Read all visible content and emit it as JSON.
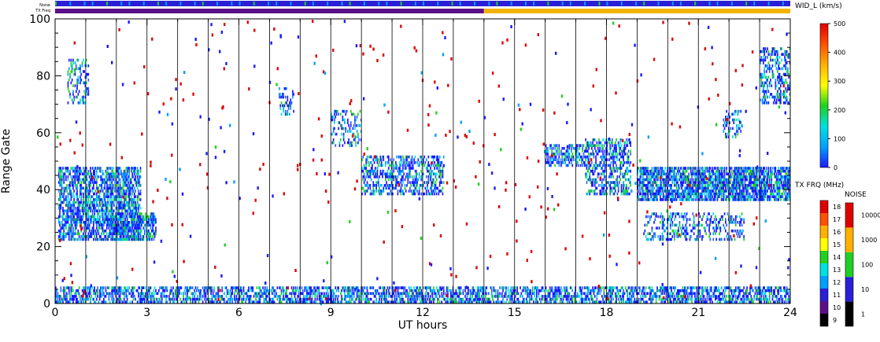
{
  "chart_data": {
    "type": "heatmap",
    "title": "",
    "xlabel": "UT hours",
    "ylabel": "Range Gate",
    "xlim": [
      0,
      24
    ],
    "ylim": [
      0,
      100
    ],
    "x_ticks": [
      "0",
      "3",
      "6",
      "9",
      "12",
      "15",
      "18",
      "21",
      "24"
    ],
    "y_ticks": [
      "0",
      "20",
      "40",
      "60",
      "80",
      "100"
    ],
    "top_strips": {
      "noise_label": "Noise",
      "freq_label": "TX Freq",
      "noise_color": "#2a1fd6",
      "freq_segments": [
        {
          "from": 0,
          "to": 14,
          "color": "#5a0f8a"
        },
        {
          "from": 14,
          "to": 24,
          "color": "#f2b400"
        }
      ]
    },
    "colorbars": {
      "width": {
        "title": "WID_L (km/s)",
        "ticks": [
          "0",
          "100",
          "200",
          "300",
          "400",
          "500"
        ],
        "colors": [
          "#1a1aff",
          "#00a0ff",
          "#00e0e0",
          "#20d020",
          "#ffff00",
          "#ffb000",
          "#ff5000",
          "#e00000"
        ]
      },
      "tx_freq": {
        "title": "TX FRQ (MHz)",
        "ticks": [
          "9",
          "10",
          "11",
          "12",
          "13",
          "14",
          "15",
          "16",
          "17",
          "18"
        ],
        "colors": [
          "#000000",
          "#5a0f8a",
          "#2a1fd6",
          "#00a0ff",
          "#00e0e0",
          "#20d020",
          "#ffff00",
          "#ffb000",
          "#ff5000",
          "#e00000"
        ]
      },
      "noise": {
        "title": "NOISE",
        "ticks": [
          "1",
          "10",
          "100",
          "1000",
          "10000"
        ],
        "colors": [
          "#000000",
          "#2a1fd6",
          "#20d020",
          "#ffb000",
          "#e00000"
        ]
      }
    },
    "scatter_regions": [
      {
        "x": [
          0.1,
          2.8
        ],
        "y": [
          22,
          48
        ],
        "density": 0.65
      },
      {
        "x": [
          1.8,
          3.3
        ],
        "y": [
          22,
          32
        ],
        "density": 0.55
      },
      {
        "x": [
          0.4,
          1.1
        ],
        "y": [
          70,
          86
        ],
        "density": 0.35
      },
      {
        "x": [
          7.3,
          7.8
        ],
        "y": [
          66,
          76
        ],
        "density": 0.35
      },
      {
        "x": [
          9.0,
          10.0
        ],
        "y": [
          55,
          68
        ],
        "density": 0.3
      },
      {
        "x": [
          10.0,
          12.7
        ],
        "y": [
          38,
          52
        ],
        "density": 0.45
      },
      {
        "x": [
          16.0,
          17.5
        ],
        "y": [
          48,
          56
        ],
        "density": 0.5
      },
      {
        "x": [
          17.3,
          18.8
        ],
        "y": [
          38,
          58
        ],
        "density": 0.45
      },
      {
        "x": [
          19.0,
          24.0
        ],
        "y": [
          36,
          48
        ],
        "density": 0.75
      },
      {
        "x": [
          19.2,
          22.5
        ],
        "y": [
          22,
          32
        ],
        "density": 0.3
      },
      {
        "x": [
          23.0,
          24.0
        ],
        "y": [
          70,
          90
        ],
        "density": 0.4
      },
      {
        "x": [
          21.8,
          22.4
        ],
        "y": [
          58,
          68
        ],
        "density": 0.35
      },
      {
        "x": [
          0.0,
          24.0
        ],
        "y": [
          0,
          6
        ],
        "density": 0.55
      }
    ]
  }
}
